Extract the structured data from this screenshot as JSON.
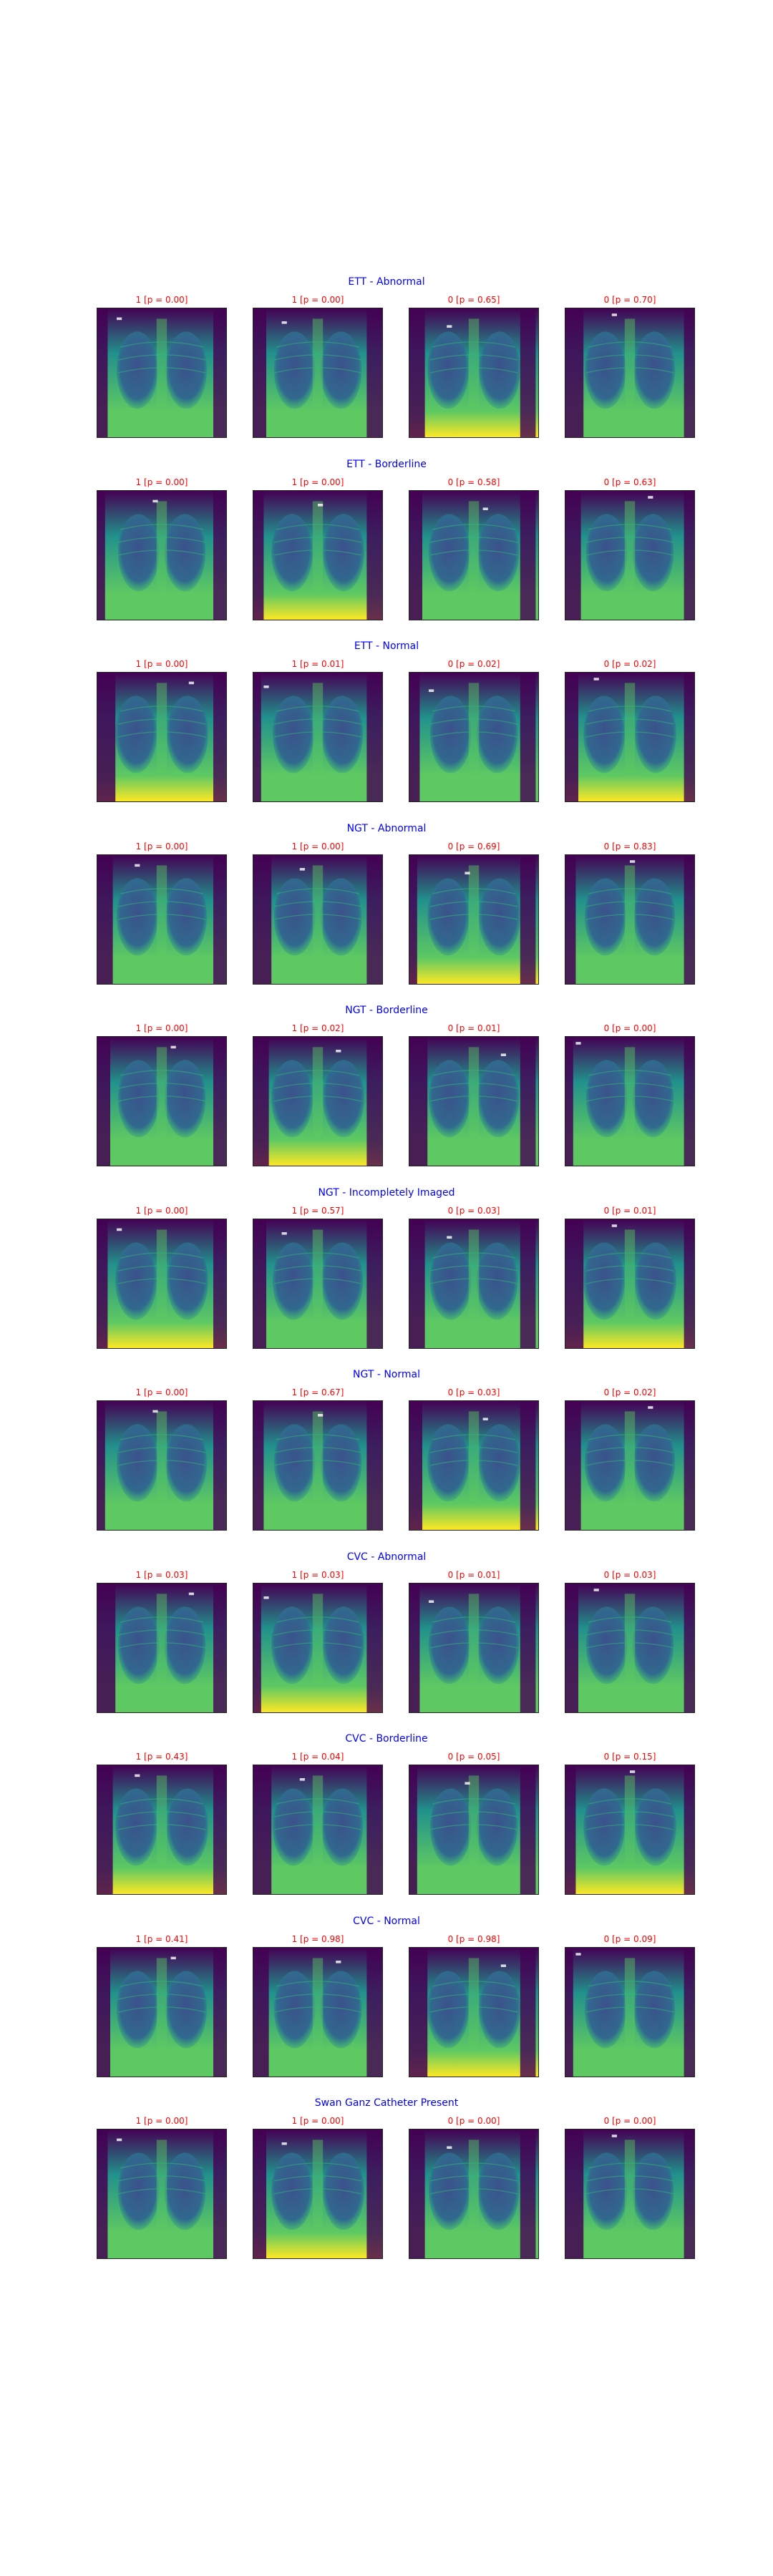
{
  "colors": {
    "row_title": "#0000ff",
    "cell_title": "#ff0000",
    "viridis_dark": "#440154",
    "viridis_mid": "#21918c",
    "viridis_light": "#5ec962",
    "viridis_bright": "#fde725"
  },
  "rows": [
    {
      "title": "ETT - Abnormal",
      "images": [
        {
          "label": "1 [p = 0.00]"
        },
        {
          "label": "1 [p = 0.00]"
        },
        {
          "label": "0 [p = 0.65]"
        },
        {
          "label": "0 [p = 0.70]"
        }
      ]
    },
    {
      "title": "ETT - Borderline",
      "images": [
        {
          "label": "1 [p = 0.00]"
        },
        {
          "label": "1 [p = 0.00]"
        },
        {
          "label": "0 [p = 0.58]"
        },
        {
          "label": "0 [p = 0.63]"
        }
      ]
    },
    {
      "title": "ETT - Normal",
      "images": [
        {
          "label": "1 [p = 0.00]"
        },
        {
          "label": "1 [p = 0.01]"
        },
        {
          "label": "0 [p = 0.02]"
        },
        {
          "label": "0 [p = 0.02]"
        }
      ]
    },
    {
      "title": "NGT - Abnormal",
      "images": [
        {
          "label": "1 [p = 0.00]"
        },
        {
          "label": "1 [p = 0.00]"
        },
        {
          "label": "0 [p = 0.69]"
        },
        {
          "label": "0 [p = 0.83]"
        }
      ]
    },
    {
      "title": "NGT - Borderline",
      "images": [
        {
          "label": "1 [p = 0.00]"
        },
        {
          "label": "1 [p = 0.02]"
        },
        {
          "label": "0 [p = 0.01]"
        },
        {
          "label": "0 [p = 0.00]"
        }
      ]
    },
    {
      "title": "NGT - Incompletely Imaged",
      "images": [
        {
          "label": "1 [p = 0.00]"
        },
        {
          "label": "1 [p = 0.57]"
        },
        {
          "label": "0 [p = 0.03]"
        },
        {
          "label": "0 [p = 0.01]"
        }
      ]
    },
    {
      "title": "NGT - Normal",
      "images": [
        {
          "label": "1 [p = 0.00]"
        },
        {
          "label": "1 [p = 0.67]"
        },
        {
          "label": "0 [p = 0.03]"
        },
        {
          "label": "0 [p = 0.02]"
        }
      ]
    },
    {
      "title": "CVC - Abnormal",
      "images": [
        {
          "label": "1 [p = 0.03]"
        },
        {
          "label": "1 [p = 0.03]"
        },
        {
          "label": "0 [p = 0.01]"
        },
        {
          "label": "0 [p = 0.03]"
        }
      ]
    },
    {
      "title": "CVC - Borderline",
      "images": [
        {
          "label": "1 [p = 0.43]"
        },
        {
          "label": "1 [p = 0.04]"
        },
        {
          "label": "0 [p = 0.05]"
        },
        {
          "label": "0 [p = 0.15]"
        }
      ]
    },
    {
      "title": "CVC - Normal",
      "images": [
        {
          "label": "1 [p = 0.41]"
        },
        {
          "label": "1 [p = 0.98]"
        },
        {
          "label": "0 [p = 0.98]"
        },
        {
          "label": "0 [p = 0.09]"
        }
      ]
    },
    {
      "title": "Swan Ganz Catheter Present",
      "images": [
        {
          "label": "1 [p = 0.00]"
        },
        {
          "label": "1 [p = 0.00]"
        },
        {
          "label": "0 [p = 0.00]"
        },
        {
          "label": "0 [p = 0.00]"
        }
      ]
    }
  ]
}
